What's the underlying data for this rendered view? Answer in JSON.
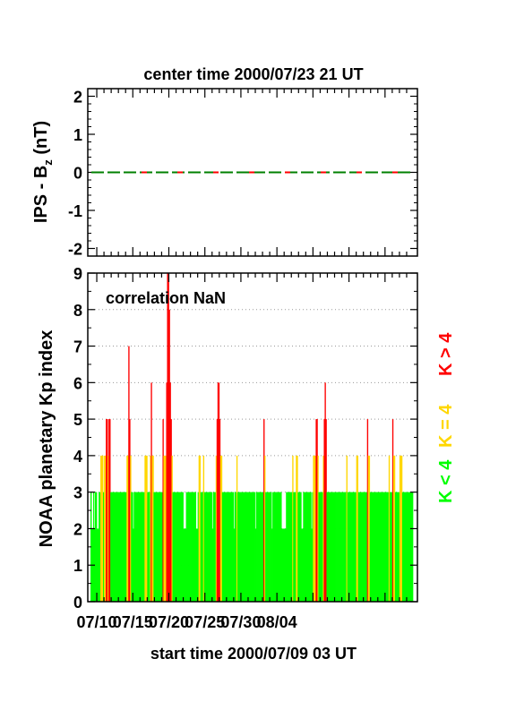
{
  "chart_data": [
    {
      "type": "line",
      "title": "center time 2000/07/23 21 UT",
      "ylabel": {
        "main": "IPS - B",
        "sub": "z",
        "unit": " (nT)"
      },
      "ylim": [
        -2.2,
        2.2
      ],
      "yticks": [
        -2,
        -1,
        0,
        1,
        2
      ],
      "series": [
        {
          "values": [
            0
          ],
          "color": "#008000"
        }
      ]
    },
    {
      "type": "bar",
      "annotation": "correlation NaN",
      "ylabel": "NOAA planetary Kp index",
      "xlabel": "start time 2000/07/09 03 UT",
      "xticks": [
        "07/10",
        "07/15",
        "07/20",
        "07/25",
        "07/30",
        "08/04"
      ],
      "ylim": [
        0,
        9
      ],
      "yticks": [
        0,
        1,
        2,
        3,
        4,
        5,
        6,
        7,
        8,
        9
      ],
      "grid": true,
      "bin_hours": 3,
      "legend": [
        {
          "label": "K < 4",
          "color": "#00ff00"
        },
        {
          "label": "K = 4",
          "color": "#ffd700"
        },
        {
          "label": "K > 4",
          "color": "#ff0000"
        }
      ],
      "values": [
        3,
        2,
        2,
        3,
        2,
        3,
        3,
        2,
        2,
        3,
        3,
        4,
        4,
        4,
        3,
        4,
        4,
        5,
        5,
        4,
        5,
        5,
        3,
        3,
        3,
        3,
        3,
        3,
        3,
        3,
        3,
        3,
        3,
        3,
        3,
        3,
        3,
        3,
        3,
        3,
        4,
        4,
        7,
        5,
        4,
        3,
        3,
        2,
        3,
        3,
        3,
        3,
        3,
        3,
        3,
        3,
        3,
        3,
        3,
        3,
        4,
        4,
        4,
        3,
        3,
        3,
        4,
        6,
        4,
        4,
        3,
        3,
        3,
        3,
        3,
        3,
        3,
        3,
        3,
        3,
        5,
        4,
        4,
        4,
        6,
        9,
        9,
        8,
        6,
        5,
        4,
        3,
        3,
        3,
        3,
        3,
        3,
        3,
        3,
        3,
        3,
        3,
        3,
        2,
        2,
        2,
        3,
        3,
        3,
        3,
        3,
        3,
        3,
        3,
        3,
        3,
        3,
        2,
        2,
        3,
        4,
        4,
        3,
        3,
        3,
        4,
        3,
        3,
        3,
        3,
        3,
        3,
        3,
        3,
        3,
        2,
        3,
        3,
        3,
        4,
        5,
        6,
        6,
        5,
        4,
        4,
        3,
        3,
        3,
        3,
        3,
        3,
        3,
        3,
        3,
        3,
        3,
        3,
        3,
        2,
        3,
        3,
        4,
        3,
        3,
        3,
        3,
        3,
        3,
        3,
        3,
        3,
        3,
        3,
        3,
        3,
        3,
        3,
        3,
        3,
        3,
        3,
        3,
        2,
        3,
        3,
        3,
        3,
        3,
        3,
        3,
        3,
        5,
        4,
        3,
        3,
        3,
        3,
        3,
        3,
        3,
        2,
        3,
        3,
        3,
        3,
        3,
        3,
        3,
        3,
        3,
        3,
        2,
        2,
        2,
        2,
        2,
        3,
        3,
        3,
        3,
        3,
        3,
        3,
        4,
        3,
        3,
        3,
        4,
        4,
        3,
        3,
        3,
        3,
        2,
        2,
        3,
        3,
        3,
        3,
        3,
        3,
        3,
        3,
        3,
        2,
        3,
        4,
        4,
        4,
        5,
        5,
        4,
        3,
        3,
        3,
        3,
        3,
        4,
        5,
        6,
        5,
        3,
        3,
        3,
        3,
        3,
        3,
        3,
        3,
        3,
        3,
        3,
        3,
        3,
        3,
        3,
        3,
        3,
        3,
        3,
        3,
        3,
        3,
        4,
        3,
        3,
        3,
        3,
        3,
        3,
        3,
        3,
        3,
        3,
        4,
        4,
        3,
        3,
        3,
        3,
        3,
        3,
        3,
        3,
        3,
        3,
        5,
        4,
        4,
        3,
        3,
        3,
        3,
        3,
        3,
        3,
        3,
        3,
        3,
        3,
        3,
        3,
        3,
        3,
        3,
        3,
        3,
        3,
        3,
        3,
        4,
        3,
        3,
        3,
        5,
        4,
        4,
        3,
        3,
        3,
        3,
        3,
        4,
        4,
        4,
        3,
        3,
        3,
        3,
        3,
        3,
        3,
        3,
        3,
        3,
        3,
        3
      ]
    }
  ]
}
